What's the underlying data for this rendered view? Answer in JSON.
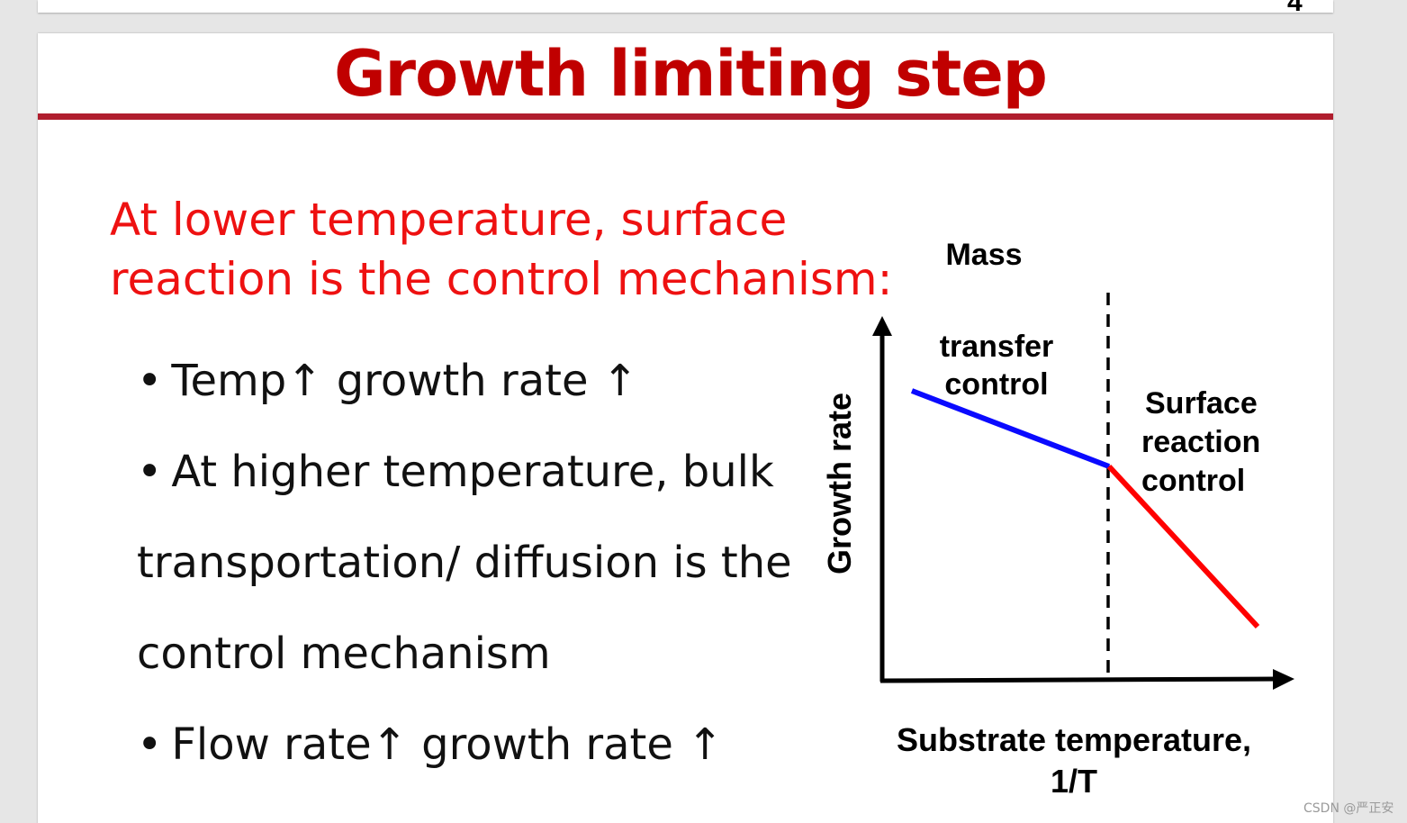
{
  "page_number": "4",
  "title": "Growth limiting step",
  "intro": {
    "line1": "At lower temperature, surface",
    "line2": "reaction is the control mechanism:"
  },
  "bullets": [
    {
      "bullet": "•",
      "text": "Temp↑ growth rate ↑"
    },
    {
      "bullet": "•",
      "text": "At higher temperature, bulk"
    },
    {
      "bullet": "",
      "text": "transportation/ diffusion is the"
    },
    {
      "bullet": "",
      "text": "control mechanism"
    },
    {
      "bullet": "•",
      "text": "Flow rate↑ growth rate ↑"
    }
  ],
  "diagram": {
    "y_axis_label": "Growth rate",
    "x_axis_label_line1": "Substrate temperature,",
    "x_axis_label_line2": "1/T",
    "mass_label_line1": "Mass",
    "mass_label_line2": "transfer",
    "mass_label_line3": "control",
    "surface_label_line1": "Surface",
    "surface_label_line2": "reaction",
    "surface_label_line3": "control",
    "colors": {
      "mass_transfer_line": "#0a0aff",
      "surface_reaction_line": "#ff0000",
      "axes": "#000000"
    }
  },
  "watermark": "CSDN @严正安"
}
